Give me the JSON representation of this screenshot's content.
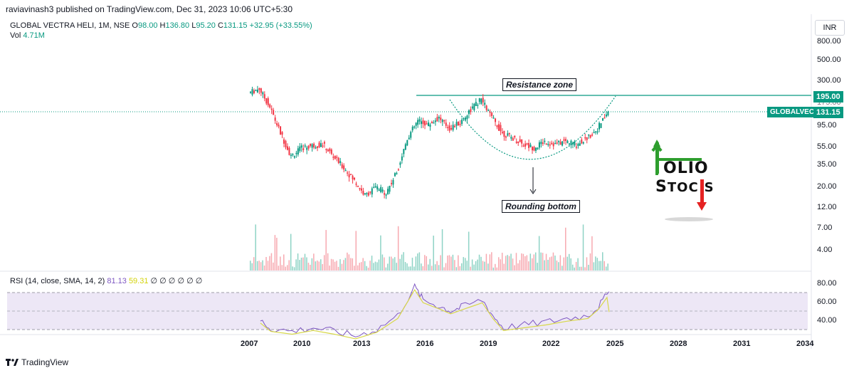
{
  "header": {
    "published": "raviavinash3 published on TradingView.com, Dec 31, 2023 10:06 UTC+5:30"
  },
  "legend": {
    "symbol": "GLOBAL VECTRA HELI, 1M, NSE",
    "o_key": "O",
    "o_val": "98.00",
    "h_key": "H",
    "h_val": "136.80",
    "l_key": "L",
    "l_val": "95.20",
    "c_key": "C",
    "c_val": "131.15",
    "change": "+32.95 (+33.55%)",
    "vol_key": "Vol",
    "vol_val": "4.71M"
  },
  "currency": "INR",
  "price_axis": [
    "800.00",
    "500.00",
    "300.00",
    "175.00",
    "95.00",
    "55.00",
    "35.00",
    "20.00",
    "12.00",
    "7.00",
    "4.00"
  ],
  "resistance_price": "195.00",
  "ticker_label": "GLOBALVECT",
  "last_price": "131.15",
  "annotations": {
    "resistance": "Resistance zone",
    "rounding": "Rounding bottom"
  },
  "watermark": {
    "line1": "OLIO",
    "line2a": "S",
    "line2b": "TOC",
    "line2c": "S"
  },
  "rsi": {
    "label": "RSI (14, close, SMA, 14, 2)",
    "rsi_val": "81.13",
    "sma_val": "59.31",
    "extras": "∅ ∅ ∅ ∅ ∅ ∅",
    "axis": [
      "80.00",
      "60.00",
      "40.00"
    ]
  },
  "x_axis": [
    "2007",
    "2010",
    "2013",
    "2016",
    "2019",
    "2022",
    "2025",
    "2028",
    "2031",
    "2034"
  ],
  "footer": {
    "brand": "TradingView"
  },
  "colors": {
    "up": "#089981",
    "down": "#f23645",
    "rsi": "#7e57c2",
    "rsi_ma": "#d8d84a",
    "band": "#ede7f6"
  },
  "chart_data": {
    "type": "candlestick",
    "title": "GLOBAL VECTRA HELI, 1M, NSE",
    "scale": "log",
    "ylim": [
      3.5,
      900
    ],
    "resistance": 195,
    "last": 131.15,
    "series": [
      {
        "x": "2007",
        "y": 230
      },
      {
        "x": "2007.5",
        "y": 260
      },
      {
        "x": "2008",
        "y": 150
      },
      {
        "x": "2008.5",
        "y": 70
      },
      {
        "x": "2009",
        "y": 35
      },
      {
        "x": "2009.5",
        "y": 45
      },
      {
        "x": "2010",
        "y": 48
      },
      {
        "x": "2010.5",
        "y": 50
      },
      {
        "x": "2011",
        "y": 35
      },
      {
        "x": "2011.5",
        "y": 25
      },
      {
        "x": "2012",
        "y": 17
      },
      {
        "x": "2012.5",
        "y": 11
      },
      {
        "x": "2013",
        "y": 14
      },
      {
        "x": "2013.5",
        "y": 12
      },
      {
        "x": "2014",
        "y": 22
      },
      {
        "x": "2014.5",
        "y": 60
      },
      {
        "x": "2015",
        "y": 100
      },
      {
        "x": "2015.5",
        "y": 90
      },
      {
        "x": "2016",
        "y": 110
      },
      {
        "x": "2016.5",
        "y": 80
      },
      {
        "x": "2017",
        "y": 95
      },
      {
        "x": "2017.5",
        "y": 140
      },
      {
        "x": "2018",
        "y": 190
      },
      {
        "x": "2018.5",
        "y": 110
      },
      {
        "x": "2019",
        "y": 70
      },
      {
        "x": "2019.5",
        "y": 60
      },
      {
        "x": "2020",
        "y": 50
      },
      {
        "x": "2020.5",
        "y": 45
      },
      {
        "x": "2021",
        "y": 55
      },
      {
        "x": "2021.5",
        "y": 50
      },
      {
        "x": "2022",
        "y": 55
      },
      {
        "x": "2022.5",
        "y": 50
      },
      {
        "x": "2023",
        "y": 60
      },
      {
        "x": "2023.5",
        "y": 80
      },
      {
        "x": "2024",
        "y": 131
      }
    ],
    "rsi": [
      {
        "x": "2007.5",
        "y": 50
      },
      {
        "x": "2008",
        "y": 41
      },
      {
        "x": "2009",
        "y": 38
      },
      {
        "x": "2010",
        "y": 42
      },
      {
        "x": "2011",
        "y": 38
      },
      {
        "x": "2012",
        "y": 33
      },
      {
        "x": "2013",
        "y": 40
      },
      {
        "x": "2014",
        "y": 55
      },
      {
        "x": "2014.8",
        "y": 86
      },
      {
        "x": "2015.2",
        "y": 72
      },
      {
        "x": "2016",
        "y": 65
      },
      {
        "x": "2016.5",
        "y": 60
      },
      {
        "x": "2017",
        "y": 64
      },
      {
        "x": "2018",
        "y": 72
      },
      {
        "x": "2018.5",
        "y": 55
      },
      {
        "x": "2019",
        "y": 42
      },
      {
        "x": "2020",
        "y": 45
      },
      {
        "x": "2021",
        "y": 48
      },
      {
        "x": "2022",
        "y": 52
      },
      {
        "x": "2023",
        "y": 55
      },
      {
        "x": "2023.5",
        "y": 65
      },
      {
        "x": "2024",
        "y": 81
      }
    ]
  }
}
